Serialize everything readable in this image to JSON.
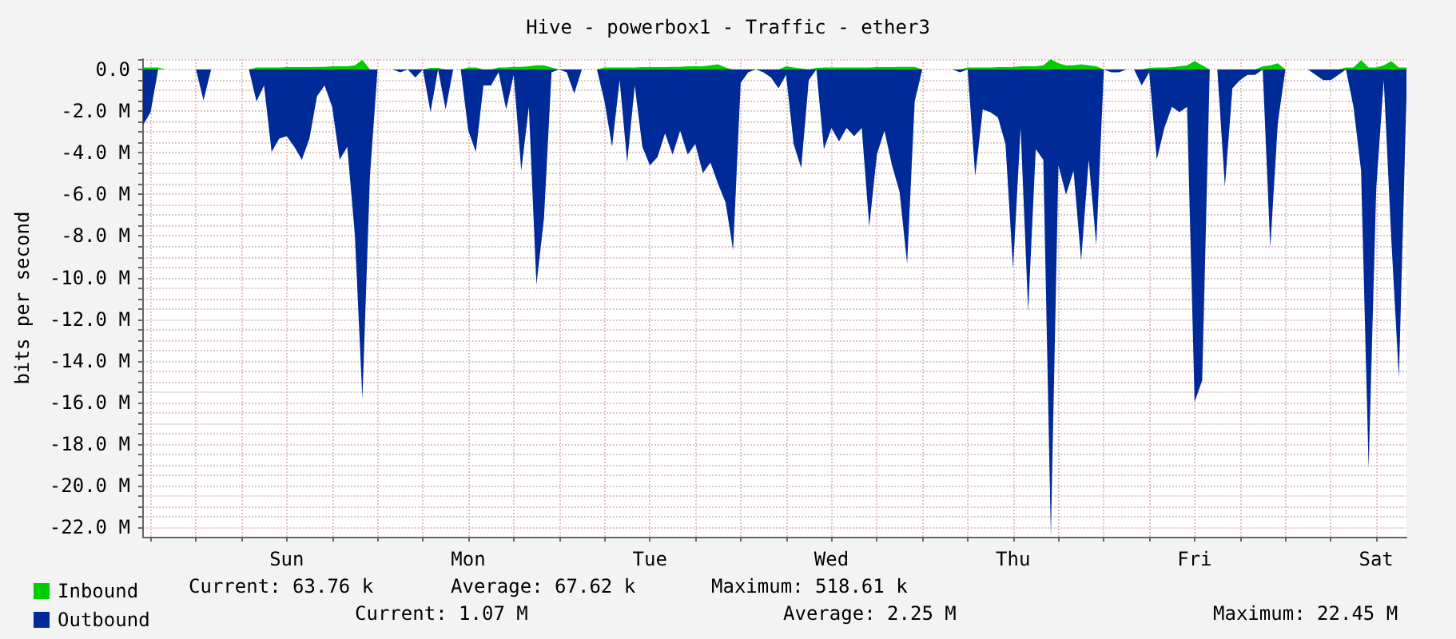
{
  "chart_data": {
    "type": "area",
    "title": "Hive - powerbox1 - Traffic - ether3",
    "ylabel": "bits per second",
    "categories": [
      null,
      null,
      null,
      null,
      null,
      null,
      null,
      null,
      null,
      null,
      null,
      null,
      null,
      null,
      null,
      null,
      null,
      null,
      null,
      "Sun",
      null,
      null,
      null,
      null,
      null,
      null,
      null,
      null,
      null,
      null,
      null,
      null,
      null,
      null,
      null,
      null,
      null,
      null,
      null,
      null,
      null,
      null,
      null,
      "Mon",
      null,
      null,
      null,
      null,
      null,
      null,
      null,
      null,
      null,
      null,
      null,
      null,
      null,
      null,
      null,
      null,
      null,
      null,
      null,
      null,
      null,
      null,
      null,
      "Tue",
      null,
      null,
      null,
      null,
      null,
      null,
      null,
      null,
      null,
      null,
      null,
      null,
      null,
      null,
      null,
      null,
      null,
      null,
      null,
      null,
      null,
      null,
      null,
      "Wed",
      null,
      null,
      null,
      null,
      null,
      null,
      null,
      null,
      null,
      null,
      null,
      null,
      null,
      null,
      null,
      null,
      null,
      null,
      null,
      null,
      null,
      null,
      null,
      "Thu",
      null,
      null,
      null,
      null,
      null,
      null,
      null,
      null,
      null,
      null,
      null,
      null,
      null,
      null,
      null,
      null,
      null,
      null,
      null,
      null,
      null,
      null,
      null,
      "Fri",
      null,
      null,
      null,
      null,
      null,
      null,
      null,
      null,
      null,
      null,
      null,
      null,
      null,
      null,
      null,
      null,
      null,
      null,
      null,
      null,
      null,
      null,
      null,
      "Sat",
      null,
      null,
      null,
      null
    ],
    "ylim": [
      -22.45,
      0.5
    ],
    "yticks": [
      {
        "value": -22,
        "label": "-22.0 M"
      },
      {
        "value": -21.5,
        "label": null
      },
      {
        "value": -21,
        "label": null
      },
      {
        "value": -20.5,
        "label": null
      },
      {
        "value": -20,
        "label": "-20.0 M"
      },
      {
        "value": -19.5,
        "label": null
      },
      {
        "value": -19,
        "label": null
      },
      {
        "value": -18.5,
        "label": null
      },
      {
        "value": -18,
        "label": "-18.0 M"
      },
      {
        "value": -17.5,
        "label": null
      },
      {
        "value": -17,
        "label": null
      },
      {
        "value": -16.5,
        "label": null
      },
      {
        "value": -16,
        "label": "-16.0 M"
      },
      {
        "value": -15.5,
        "label": null
      },
      {
        "value": -15,
        "label": null
      },
      {
        "value": -14.5,
        "label": null
      },
      {
        "value": -14,
        "label": "-14.0 M"
      },
      {
        "value": -13.5,
        "label": null
      },
      {
        "value": -13,
        "label": null
      },
      {
        "value": -12.5,
        "label": null
      },
      {
        "value": -12,
        "label": "-12.0 M"
      },
      {
        "value": -11.5,
        "label": null
      },
      {
        "value": -11,
        "label": null
      },
      {
        "value": -10.5,
        "label": null
      },
      {
        "value": -10,
        "label": "-10.0 M"
      },
      {
        "value": -9.5,
        "label": null
      },
      {
        "value": -9,
        "label": null
      },
      {
        "value": -8.5,
        "label": null
      },
      {
        "value": -8,
        "label": "-8.0 M"
      },
      {
        "value": -7.5,
        "label": null
      },
      {
        "value": -7,
        "label": null
      },
      {
        "value": -6.5,
        "label": null
      },
      {
        "value": -6,
        "label": "-6.0 M"
      },
      {
        "value": -5.5,
        "label": null
      },
      {
        "value": -5,
        "label": null
      },
      {
        "value": -4.5,
        "label": null
      },
      {
        "value": -4,
        "label": "-4.0 M"
      },
      {
        "value": -3.5,
        "label": null
      },
      {
        "value": -3,
        "label": null
      },
      {
        "value": -2.5,
        "label": null
      },
      {
        "value": -2,
        "label": "-2.0 M"
      },
      {
        "value": -1.5,
        "label": null
      },
      {
        "value": -1,
        "label": null
      },
      {
        "value": -0.5,
        "label": null
      },
      {
        "value": 0,
        "label": "0.0"
      },
      {
        "value": 0.5,
        "label": null
      }
    ],
    "grid": true,
    "legend": "bottom left",
    "annotations": [
      "Current: 63.76 k",
      "Average: 67.62 k",
      "Maximum: 518.61 k",
      "Current: 1.07 M",
      "Average: 2.25 M",
      "Maximum: 22.45 M"
    ],
    "series": [
      {
        "name": "Inbound",
        "color": "#00cc00",
        "values": [
          0.1,
          0.1,
          0.1,
          0,
          0,
          0,
          0,
          0,
          0,
          0,
          0,
          0,
          0,
          0,
          0,
          0.1,
          0.1,
          0.1,
          0.1,
          0.12,
          0.12,
          0.12,
          0.12,
          0.13,
          0.13,
          0.15,
          0.15,
          0.15,
          0.2,
          0.46,
          0,
          0,
          0,
          0,
          0,
          0,
          0,
          0,
          0.08,
          0.08,
          0,
          0,
          0,
          0.1,
          0.1,
          0,
          0,
          0.1,
          0.1,
          0.13,
          0.13,
          0.15,
          0.2,
          0.2,
          0.1,
          0,
          0,
          0,
          0,
          0,
          0,
          0.1,
          0.1,
          0.1,
          0.1,
          0.1,
          0.12,
          0.12,
          0.12,
          0.12,
          0.13,
          0.13,
          0.15,
          0.15,
          0.15,
          0.2,
          0.25,
          0.1,
          0,
          0,
          0,
          0,
          0,
          0,
          0,
          0.15,
          0.1,
          0.05,
          0,
          0.08,
          0.1,
          0.1,
          0.1,
          0.1,
          0.1,
          0.1,
          0.1,
          0.12,
          0.12,
          0.12,
          0.13,
          0.13,
          0.13,
          0,
          0,
          0,
          0,
          0,
          0,
          0.1,
          0.1,
          0.1,
          0.1,
          0.12,
          0.12,
          0.12,
          0.15,
          0.15,
          0.15,
          0.2,
          0.5,
          0.3,
          0.2,
          0.2,
          0.25,
          0.2,
          0.15,
          0,
          0,
          0,
          0,
          0,
          0,
          0.08,
          0.1,
          0.1,
          0.12,
          0.15,
          0.2,
          0.4,
          0.2,
          0,
          0,
          0,
          0,
          0,
          0,
          0,
          0.15,
          0.2,
          0.3,
          0,
          0,
          0,
          0,
          0,
          0,
          0,
          0,
          0.1,
          0.1,
          0.45,
          0.1,
          0.1,
          0.2,
          0.4,
          0.1,
          0.1
        ]
      },
      {
        "name": "Outbound",
        "color": "#002a97",
        "values": [
          -2.68,
          -2.05,
          0,
          0,
          0,
          0,
          0,
          0,
          -1.49,
          0,
          0,
          0,
          0,
          0,
          0,
          -1.53,
          -0.77,
          -3.96,
          -3.32,
          -3.2,
          -3.71,
          -4.34,
          -3.32,
          -1.28,
          -0.77,
          -1.79,
          -4.34,
          -3.71,
          -7.92,
          -15.84,
          -5.11,
          0,
          0,
          0,
          -0.13,
          0,
          -0.38,
          0,
          -2.05,
          0,
          -1.92,
          0,
          0,
          -2.94,
          -3.96,
          -0.77,
          -0.77,
          -0.13,
          -1.92,
          -0.26,
          -4.86,
          -1.79,
          -10.34,
          -7.16,
          -0.13,
          0,
          -0.13,
          -1.15,
          0,
          0,
          0,
          -1.53,
          -3.71,
          -0.51,
          -4.47,
          -0.77,
          -3.71,
          -4.6,
          -4.21,
          -3.07,
          -4.09,
          -2.94,
          -4.09,
          -3.58,
          -4.98,
          -4.47,
          -5.49,
          -6.39,
          -8.69,
          -0.64,
          -0.13,
          0,
          -0.13,
          -0.38,
          -0.9,
          -0.26,
          -3.58,
          -4.73,
          -0.51,
          0,
          -3.83,
          -2.81,
          -3.45,
          -2.81,
          -3.2,
          -2.81,
          -7.54,
          -4.09,
          -2.94,
          -4.6,
          -5.88,
          -9.33,
          -1.53,
          0,
          0,
          0,
          0,
          0,
          -0.13,
          0,
          -5.11,
          -1.92,
          -2.05,
          -2.3,
          -3.58,
          -9.58,
          -2.81,
          -11.62,
          -3.83,
          -4.34,
          -22.45,
          -4.6,
          -6.01,
          -4.86,
          -9.2,
          -4.34,
          -8.43,
          0,
          -0.13,
          -0.13,
          0,
          0,
          -0.77,
          -0.13,
          -4.34,
          -2.81,
          -1.79,
          -2.05,
          -1.79,
          -15.97,
          -14.94,
          0,
          0,
          -5.62,
          -0.9,
          -0.51,
          -0.26,
          -0.26,
          0,
          -8.56,
          -2.56,
          0,
          0,
          0,
          0,
          -0.26,
          -0.51,
          -0.51,
          -0.26,
          0,
          -1.79,
          -4.86,
          -19.16,
          -5.75,
          -0.51,
          -8.18,
          -14.82,
          -1.28
        ]
      }
    ]
  }
}
